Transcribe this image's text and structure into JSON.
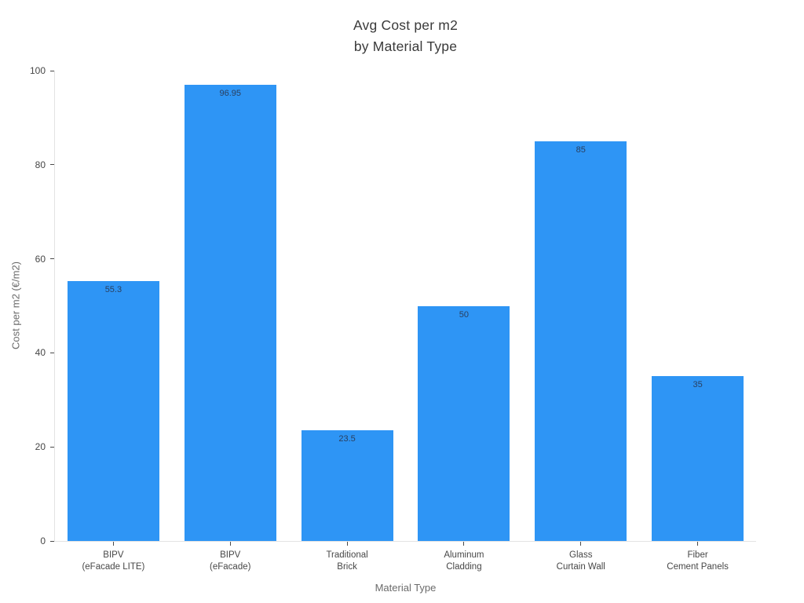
{
  "page": {
    "background_color": "#ffffff"
  },
  "chart_data": {
    "type": "bar",
    "title_lines": [
      "Avg Cost per m2",
      "by Material Type"
    ],
    "xlabel": "Material Type",
    "ylabel": "Cost per m2 (€/m2)",
    "categories": [
      [
        "BIPV",
        "(eFacade LITE)"
      ],
      [
        "BIPV",
        "(eFacade)"
      ],
      [
        "Traditional",
        "Brick"
      ],
      [
        "Aluminum",
        "Cladding"
      ],
      [
        "Glass",
        "Curtain Wall"
      ],
      [
        "Fiber",
        "Cement Panels"
      ]
    ],
    "values": [
      55.3,
      96.95,
      23.5,
      50,
      85,
      35
    ],
    "value_labels": [
      "55.3",
      "96.95",
      "23.5",
      "50",
      "85",
      "35"
    ],
    "ylim": [
      0,
      100
    ],
    "yticks": [
      0,
      20,
      40,
      60,
      80,
      100
    ],
    "bar_color": "#2E95F5",
    "value_label_color": "#2a3f5f",
    "tick_label_color": "#474747",
    "axis_title_color": "#6b6b6b",
    "title_color": "#3a3a3a",
    "spine_color": "#e3e3e3",
    "grid": false,
    "legend": null
  }
}
